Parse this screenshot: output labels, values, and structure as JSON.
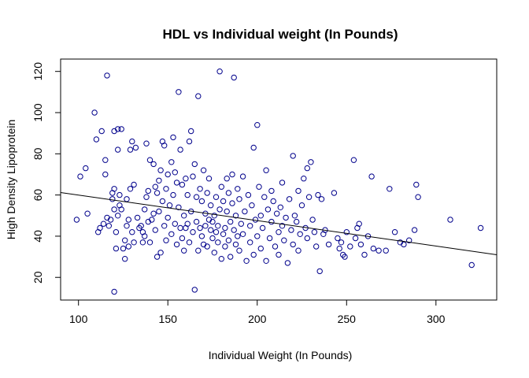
{
  "chart_data": {
    "type": "scatter",
    "title": "HDL vs Individual weight (In Pounds)",
    "xlabel": "Individual Weight (In Pounds)",
    "ylabel": "High Density Lipoprotein",
    "xlim": [
      90,
      334
    ],
    "ylim": [
      9,
      126
    ],
    "x_ticks": [
      100,
      150,
      200,
      250,
      300
    ],
    "y_ticks": [
      20,
      40,
      60,
      80,
      100,
      120
    ],
    "point_color": "#00008b",
    "marker": "open-circle",
    "regression_line": {
      "x": [
        90,
        334
      ],
      "y": [
        61.2,
        31.0
      ]
    },
    "points": [
      [
        99,
        48
      ],
      [
        101,
        69
      ],
      [
        104,
        73
      ],
      [
        105,
        51
      ],
      [
        109,
        100
      ],
      [
        110,
        87
      ],
      [
        111,
        42
      ],
      [
        112,
        44
      ],
      [
        113,
        91
      ],
      [
        114,
        46
      ],
      [
        115,
        70
      ],
      [
        115,
        77
      ],
      [
        116,
        49
      ],
      [
        116,
        118
      ],
      [
        117,
        45
      ],
      [
        118,
        48
      ],
      [
        119,
        61
      ],
      [
        119,
        58
      ],
      [
        120,
        63
      ],
      [
        120,
        91
      ],
      [
        120,
        53
      ],
      [
        120,
        13
      ],
      [
        121,
        42
      ],
      [
        121,
        34
      ],
      [
        122,
        92
      ],
      [
        122,
        50
      ],
      [
        122,
        82
      ],
      [
        123,
        60
      ],
      [
        123,
        55
      ],
      [
        124,
        53
      ],
      [
        124,
        92
      ],
      [
        125,
        34
      ],
      [
        126,
        38
      ],
      [
        126,
        29
      ],
      [
        127,
        45
      ],
      [
        127,
        58
      ],
      [
        128,
        35
      ],
      [
        128,
        48
      ],
      [
        129,
        63
      ],
      [
        129,
        82
      ],
      [
        130,
        86
      ],
      [
        130,
        42
      ],
      [
        131,
        37
      ],
      [
        131,
        65
      ],
      [
        132,
        83
      ],
      [
        133,
        49
      ],
      [
        134,
        44
      ],
      [
        135,
        45
      ],
      [
        136,
        42
      ],
      [
        136,
        37
      ],
      [
        137,
        40
      ],
      [
        137,
        53
      ],
      [
        138,
        85
      ],
      [
        138,
        59
      ],
      [
        139,
        62
      ],
      [
        139,
        47
      ],
      [
        140,
        77
      ],
      [
        140,
        37
      ],
      [
        141,
        48
      ],
      [
        142,
        75
      ],
      [
        142,
        51
      ],
      [
        143,
        64
      ],
      [
        143,
        43
      ],
      [
        144,
        30
      ],
      [
        144,
        61
      ],
      [
        145,
        67
      ],
      [
        145,
        52
      ],
      [
        146,
        72
      ],
      [
        146,
        32
      ],
      [
        147,
        86
      ],
      [
        147,
        57
      ],
      [
        148,
        84
      ],
      [
        148,
        45
      ],
      [
        149,
        63
      ],
      [
        149,
        38
      ],
      [
        150,
        70
      ],
      [
        150,
        49
      ],
      [
        151,
        55
      ],
      [
        152,
        76
      ],
      [
        152,
        41
      ],
      [
        153,
        88
      ],
      [
        153,
        60
      ],
      [
        154,
        71
      ],
      [
        154,
        46
      ],
      [
        155,
        66
      ],
      [
        155,
        36
      ],
      [
        156,
        110
      ],
      [
        156,
        54
      ],
      [
        157,
        82
      ],
      [
        157,
        44
      ],
      [
        158,
        39
      ],
      [
        158,
        65
      ],
      [
        159,
        33
      ],
      [
        159,
        50
      ],
      [
        160,
        68
      ],
      [
        160,
        44
      ],
      [
        161,
        46
      ],
      [
        161,
        60
      ],
      [
        162,
        86
      ],
      [
        162,
        37
      ],
      [
        163,
        91
      ],
      [
        163,
        52
      ],
      [
        164,
        42
      ],
      [
        164,
        69
      ],
      [
        165,
        75
      ],
      [
        165,
        14
      ],
      [
        166,
        47
      ],
      [
        166,
        59
      ],
      [
        167,
        108
      ],
      [
        167,
        33
      ],
      [
        168,
        44
      ],
      [
        168,
        63
      ],
      [
        169,
        40
      ],
      [
        169,
        57
      ],
      [
        170,
        72
      ],
      [
        170,
        36
      ],
      [
        171,
        51
      ],
      [
        171,
        45
      ],
      [
        172,
        35
      ],
      [
        172,
        61
      ],
      [
        173,
        68
      ],
      [
        173,
        48
      ],
      [
        174,
        43
      ],
      [
        174,
        55
      ],
      [
        175,
        39
      ],
      [
        175,
        47
      ],
      [
        176,
        50
      ],
      [
        176,
        32
      ],
      [
        177,
        42
      ],
      [
        177,
        59
      ],
      [
        178,
        45
      ],
      [
        178,
        37
      ],
      [
        179,
        120
      ],
      [
        179,
        53
      ],
      [
        180,
        29
      ],
      [
        180,
        64
      ],
      [
        181,
        41
      ],
      [
        181,
        57
      ],
      [
        182,
        44
      ],
      [
        182,
        35
      ],
      [
        183,
        52
      ],
      [
        183,
        68
      ],
      [
        184,
        38
      ],
      [
        184,
        61
      ],
      [
        185,
        47
      ],
      [
        185,
        30
      ],
      [
        186,
        56
      ],
      [
        186,
        70
      ],
      [
        187,
        117
      ],
      [
        187,
        43
      ],
      [
        188,
        50
      ],
      [
        188,
        36
      ],
      [
        189,
        63
      ],
      [
        189,
        40
      ],
      [
        190,
        58
      ],
      [
        190,
        33
      ],
      [
        191,
        46
      ],
      [
        192,
        69
      ],
      [
        192,
        41
      ],
      [
        193,
        52
      ],
      [
        194,
        28
      ],
      [
        195,
        60
      ],
      [
        196,
        45
      ],
      [
        196,
        37
      ],
      [
        197,
        55
      ],
      [
        198,
        83
      ],
      [
        198,
        31
      ],
      [
        199,
        48
      ],
      [
        200,
        94
      ],
      [
        200,
        40
      ],
      [
        201,
        64
      ],
      [
        202,
        50
      ],
      [
        202,
        34
      ],
      [
        203,
        44
      ],
      [
        204,
        59
      ],
      [
        205,
        72
      ],
      [
        205,
        28
      ],
      [
        206,
        53
      ],
      [
        207,
        39
      ],
      [
        208,
        62
      ],
      [
        208,
        47
      ],
      [
        209,
        57
      ],
      [
        210,
        35
      ],
      [
        211,
        51
      ],
      [
        212,
        42
      ],
      [
        212,
        31
      ],
      [
        213,
        54
      ],
      [
        214,
        66
      ],
      [
        214,
        45
      ],
      [
        215,
        38
      ],
      [
        216,
        49
      ],
      [
        217,
        27
      ],
      [
        218,
        58
      ],
      [
        219,
        43
      ],
      [
        220,
        79
      ],
      [
        220,
        36
      ],
      [
        221,
        50
      ],
      [
        222,
        47
      ],
      [
        223,
        62
      ],
      [
        223,
        33
      ],
      [
        224,
        41
      ],
      [
        225,
        55
      ],
      [
        226,
        68
      ],
      [
        227,
        44
      ],
      [
        228,
        73
      ],
      [
        228,
        39
      ],
      [
        229,
        59
      ],
      [
        230,
        76
      ],
      [
        231,
        48
      ],
      [
        232,
        42
      ],
      [
        233,
        35
      ],
      [
        234,
        60
      ],
      [
        235,
        23
      ],
      [
        236,
        58
      ],
      [
        237,
        41
      ],
      [
        238,
        43
      ],
      [
        240,
        36
      ],
      [
        243,
        61
      ],
      [
        245,
        39
      ],
      [
        246,
        34
      ],
      [
        247,
        37
      ],
      [
        248,
        31
      ],
      [
        249,
        30
      ],
      [
        250,
        42
      ],
      [
        252,
        35
      ],
      [
        254,
        77
      ],
      [
        255,
        39
      ],
      [
        256,
        44
      ],
      [
        257,
        46
      ],
      [
        258,
        36
      ],
      [
        260,
        31
      ],
      [
        262,
        40
      ],
      [
        264,
        69
      ],
      [
        265,
        34
      ],
      [
        268,
        33
      ],
      [
        272,
        33
      ],
      [
        274,
        63
      ],
      [
        277,
        42
      ],
      [
        280,
        37
      ],
      [
        282,
        36
      ],
      [
        285,
        38
      ],
      [
        288,
        43
      ],
      [
        289,
        65
      ],
      [
        290,
        59
      ],
      [
        308,
        48
      ],
      [
        320,
        26
      ],
      [
        325,
        44
      ]
    ]
  }
}
